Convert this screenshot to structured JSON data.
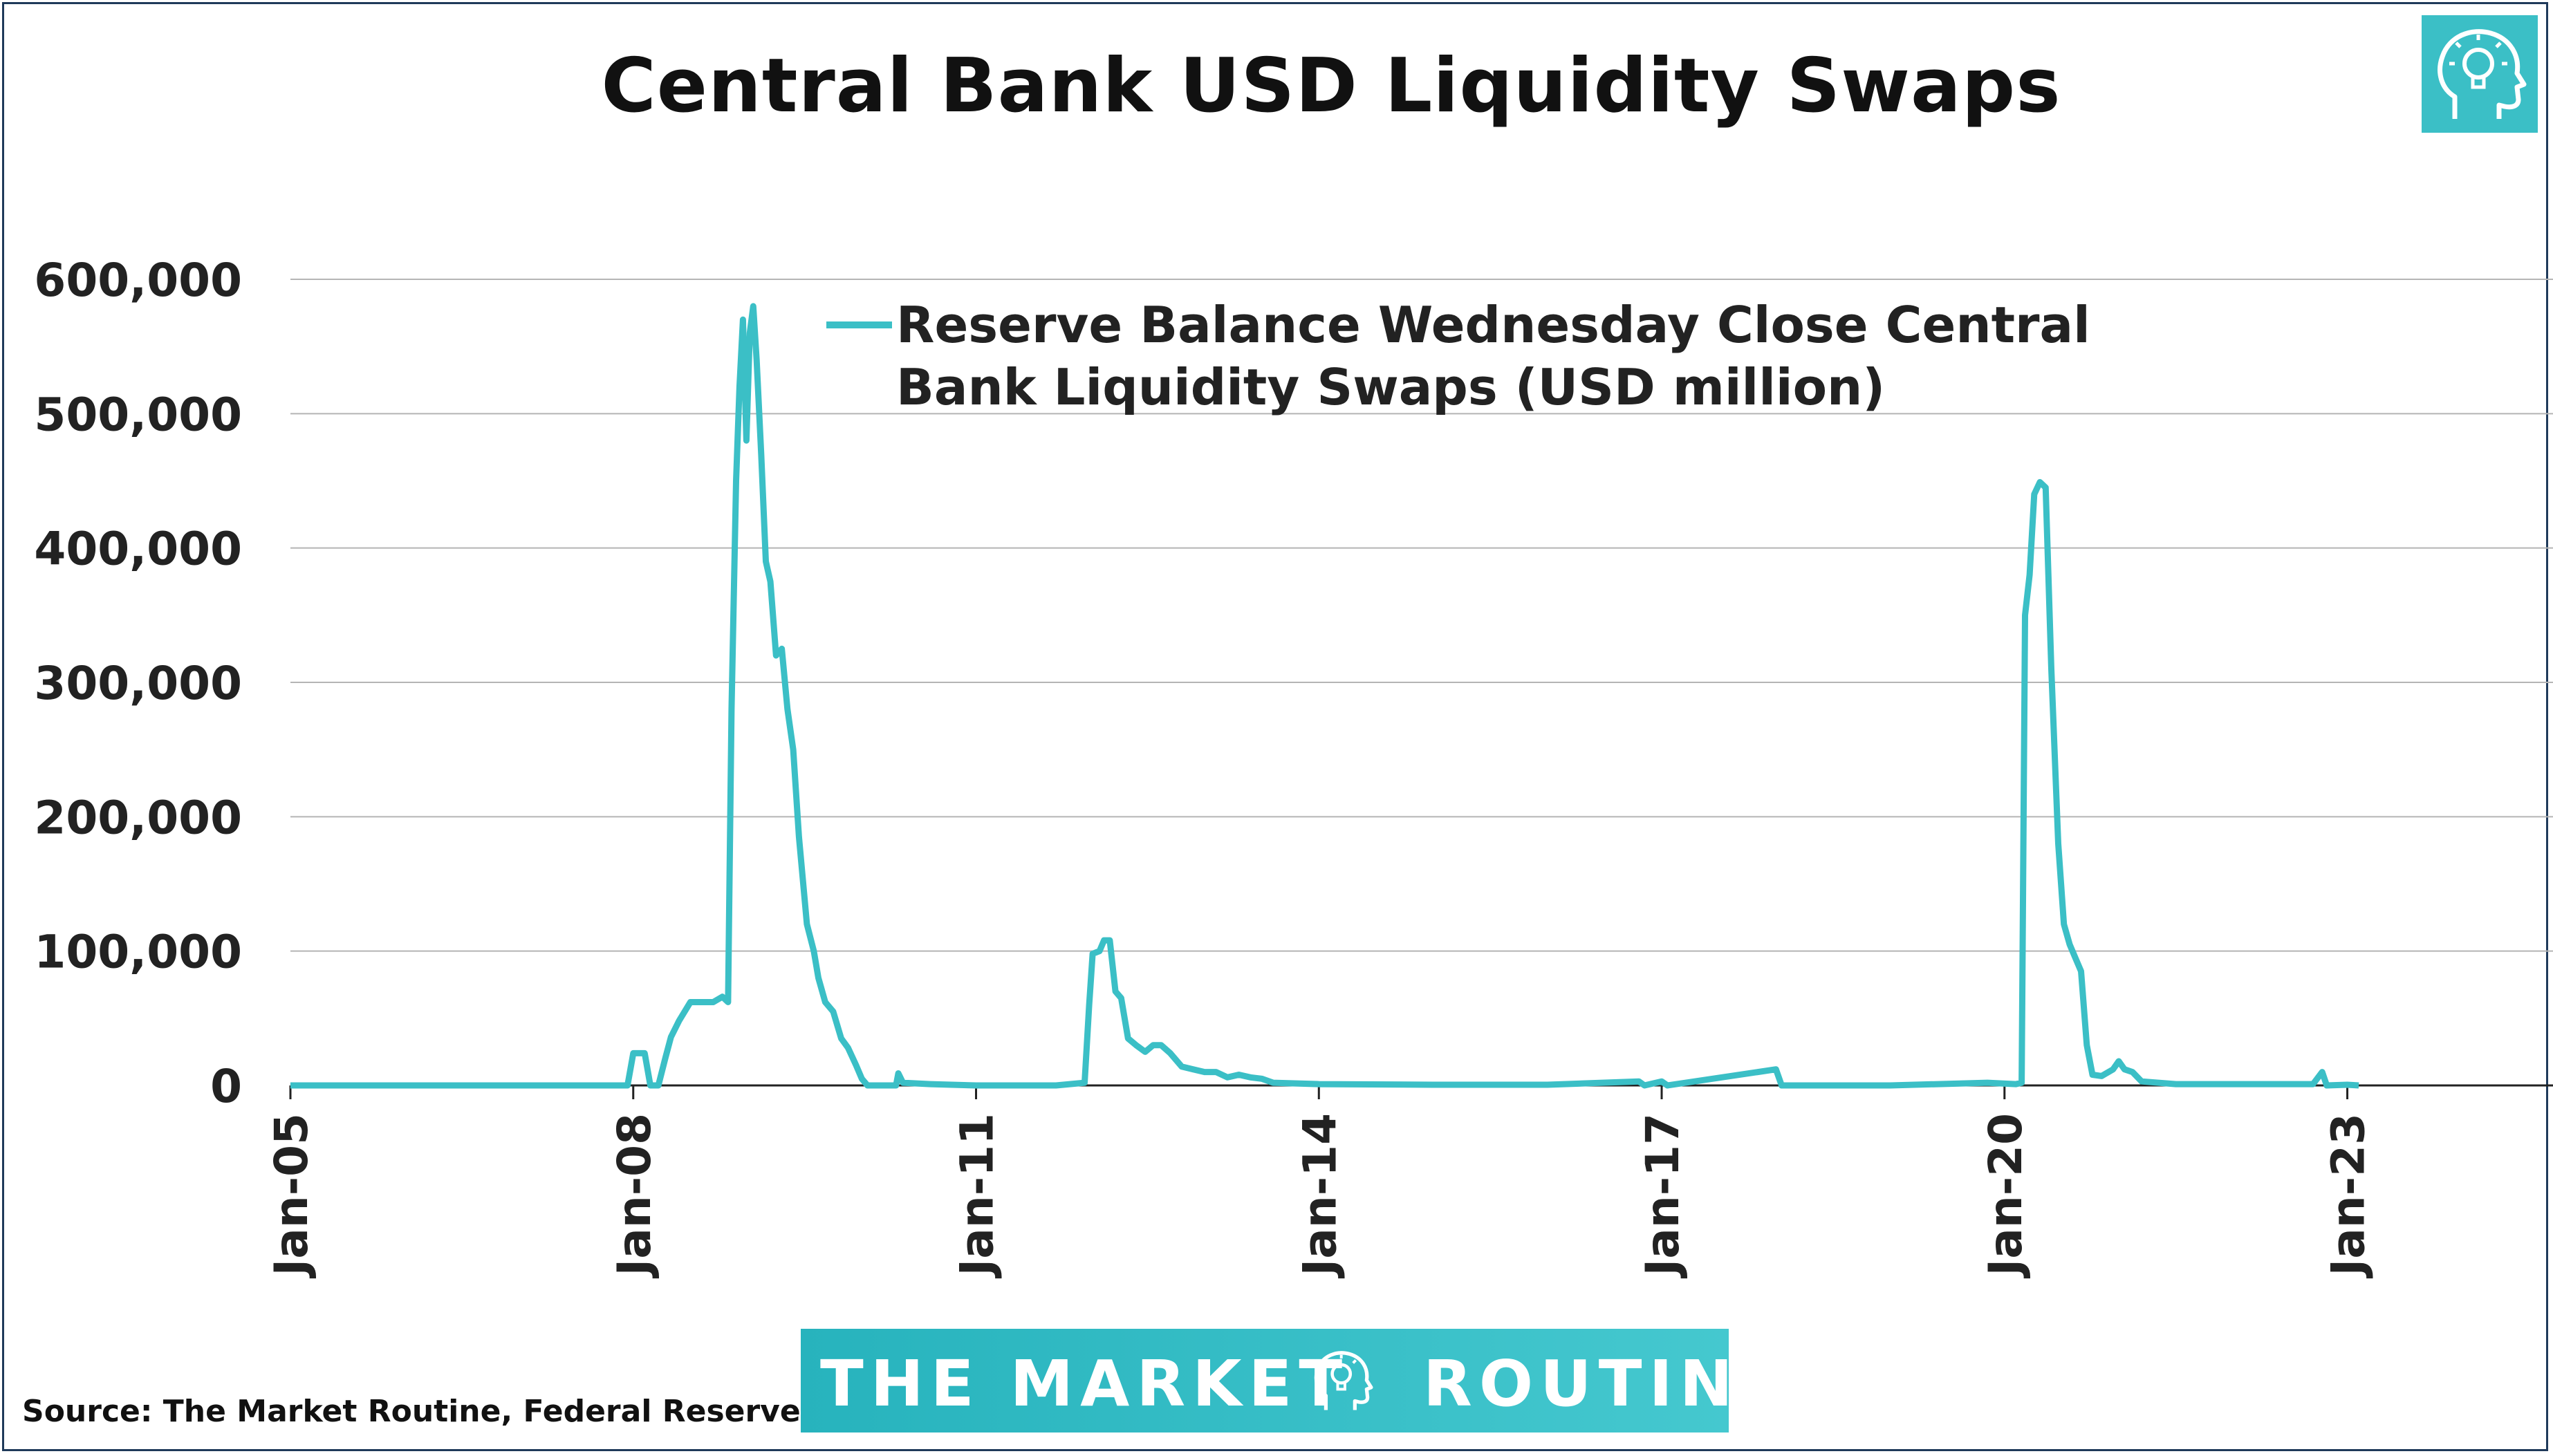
{
  "chart_data": {
    "type": "line",
    "title": "Central Bank USD Liquidity Swaps",
    "xlabel": "",
    "ylabel": "",
    "x_ticks": [
      "Jan-05",
      "Jan-08",
      "Jan-11",
      "Jan-14",
      "Jan-17",
      "Jan-20",
      "Jan-23"
    ],
    "y_ticks": [
      "0",
      "100,000",
      "200,000",
      "300,000",
      "400,000",
      "500,000",
      "600,000"
    ],
    "xlim": [
      2005.0,
      2024.8
    ],
    "ylim": [
      0,
      600000
    ],
    "grid": true,
    "legend_position": "top-center",
    "series": [
      {
        "name": "Reserve Balance Wednesday Close Central Bank Liquidity Swaps (USD million)",
        "color": "#3bbfc6",
        "points": [
          [
            2005.0,
            0
          ],
          [
            2007.0,
            0
          ],
          [
            2007.95,
            0
          ],
          [
            2008.0,
            24000
          ],
          [
            2008.1,
            24000
          ],
          [
            2008.15,
            0
          ],
          [
            2008.22,
            0
          ],
          [
            2008.28,
            20000
          ],
          [
            2008.33,
            36000
          ],
          [
            2008.4,
            48000
          ],
          [
            2008.5,
            62000
          ],
          [
            2008.6,
            62000
          ],
          [
            2008.7,
            62000
          ],
          [
            2008.78,
            66000
          ],
          [
            2008.83,
            62000
          ],
          [
            2008.86,
            280000
          ],
          [
            2008.9,
            450000
          ],
          [
            2008.93,
            520000
          ],
          [
            2008.96,
            570000
          ],
          [
            2008.99,
            480000
          ],
          [
            2009.02,
            560000
          ],
          [
            2009.05,
            580000
          ],
          [
            2009.08,
            540000
          ],
          [
            2009.12,
            470000
          ],
          [
            2009.16,
            390000
          ],
          [
            2009.2,
            375000
          ],
          [
            2009.25,
            320000
          ],
          [
            2009.3,
            325000
          ],
          [
            2009.35,
            280000
          ],
          [
            2009.4,
            250000
          ],
          [
            2009.45,
            185000
          ],
          [
            2009.52,
            120000
          ],
          [
            2009.58,
            100000
          ],
          [
            2009.62,
            80000
          ],
          [
            2009.68,
            62000
          ],
          [
            2009.75,
            55000
          ],
          [
            2009.82,
            35000
          ],
          [
            2009.88,
            28000
          ],
          [
            2009.95,
            15000
          ],
          [
            2010.0,
            5000
          ],
          [
            2010.05,
            0
          ],
          [
            2010.3,
            0
          ],
          [
            2010.32,
            9000
          ],
          [
            2010.36,
            2000
          ],
          [
            2010.6,
            1000
          ],
          [
            2011.0,
            0
          ],
          [
            2011.7,
            0
          ],
          [
            2011.95,
            2000
          ],
          [
            2011.99,
            60000
          ],
          [
            2012.02,
            98000
          ],
          [
            2012.08,
            100000
          ],
          [
            2012.12,
            108000
          ],
          [
            2012.17,
            108000
          ],
          [
            2012.22,
            70000
          ],
          [
            2012.27,
            65000
          ],
          [
            2012.33,
            35000
          ],
          [
            2012.4,
            30000
          ],
          [
            2012.48,
            25000
          ],
          [
            2012.55,
            30000
          ],
          [
            2012.62,
            30000
          ],
          [
            2012.7,
            24000
          ],
          [
            2012.8,
            14000
          ],
          [
            2012.9,
            12000
          ],
          [
            2013.0,
            10000
          ],
          [
            2013.1,
            10000
          ],
          [
            2013.2,
            6000
          ],
          [
            2013.3,
            8000
          ],
          [
            2013.4,
            6000
          ],
          [
            2013.5,
            5000
          ],
          [
            2013.6,
            2000
          ],
          [
            2014.0,
            1000
          ],
          [
            2015.0,
            500
          ],
          [
            2016.0,
            500
          ],
          [
            2016.8,
            3000
          ],
          [
            2016.85,
            0
          ],
          [
            2017.0,
            3000
          ],
          [
            2017.05,
            0
          ],
          [
            2018.0,
            12000
          ],
          [
            2018.05,
            0
          ],
          [
            2019.0,
            0
          ],
          [
            2019.85,
            2000
          ],
          [
            2020.1,
            1000
          ],
          [
            2020.15,
            2000
          ],
          [
            2020.18,
            350000
          ],
          [
            2020.22,
            380000
          ],
          [
            2020.26,
            440000
          ],
          [
            2020.31,
            449000
          ],
          [
            2020.36,
            445000
          ],
          [
            2020.41,
            310000
          ],
          [
            2020.47,
            180000
          ],
          [
            2020.52,
            120000
          ],
          [
            2020.57,
            105000
          ],
          [
            2020.62,
            95000
          ],
          [
            2020.67,
            85000
          ],
          [
            2020.72,
            30000
          ],
          [
            2020.77,
            8000
          ],
          [
            2020.85,
            7000
          ],
          [
            2020.95,
            12000
          ],
          [
            2021.0,
            18000
          ],
          [
            2021.05,
            12000
          ],
          [
            2021.12,
            10000
          ],
          [
            2021.2,
            3000
          ],
          [
            2021.5,
            1000
          ],
          [
            2022.0,
            1000
          ],
          [
            2022.7,
            1000
          ],
          [
            2022.78,
            10000
          ],
          [
            2022.82,
            0
          ],
          [
            2023.0,
            500
          ],
          [
            2023.1,
            0
          ]
        ]
      }
    ]
  },
  "footer": {
    "source": "Source: The Market Routine, Federal Reserve",
    "banner_left": "THE MARKET",
    "banner_right": "ROUTINE"
  },
  "brand_colors": {
    "teal": "#3bbfc6",
    "border": "#1f3a5a"
  },
  "icons": {
    "logo": "lightbulb-head-icon",
    "banner": "lightbulb-head-icon"
  }
}
